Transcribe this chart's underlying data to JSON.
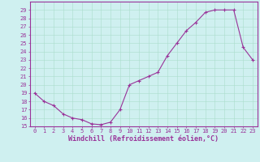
{
  "x": [
    0,
    1,
    2,
    3,
    4,
    5,
    6,
    7,
    8,
    9,
    10,
    11,
    12,
    13,
    14,
    15,
    16,
    17,
    18,
    19,
    20,
    21,
    22,
    23
  ],
  "y": [
    19,
    18,
    17.5,
    16.5,
    16,
    15.8,
    15.3,
    15.2,
    15.5,
    17,
    20,
    20.5,
    21,
    21.5,
    23.5,
    25,
    26.5,
    27.5,
    28.7,
    29,
    29,
    29,
    24.5,
    23
  ],
  "line_color": "#993399",
  "marker": "+",
  "marker_size": 3,
  "marker_linewidth": 0.8,
  "background_color": "#cff0f0",
  "grid_color": "#aaddcc",
  "xlabel": "Windchill (Refroidissement éolien,°C)",
  "ylim": [
    15,
    30
  ],
  "xlim": [
    -0.5,
    23.5
  ],
  "yticks": [
    15,
    16,
    17,
    18,
    19,
    20,
    21,
    22,
    23,
    24,
    25,
    26,
    27,
    28,
    29
  ],
  "xticks": [
    0,
    1,
    2,
    3,
    4,
    5,
    6,
    7,
    8,
    9,
    10,
    11,
    12,
    13,
    14,
    15,
    16,
    17,
    18,
    19,
    20,
    21,
    22,
    23
  ],
  "tick_fontsize": 5,
  "xlabel_fontsize": 6,
  "font_color": "#993399",
  "spine_color": "#993399",
  "linewidth": 0.8
}
